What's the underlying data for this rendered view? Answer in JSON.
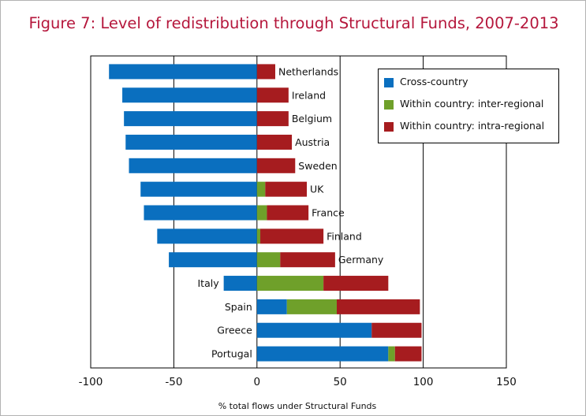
{
  "figure": {
    "title": "Figure 7: Level of redistribution through Structural Funds, 2007-2013"
  },
  "colors": {
    "title": "#b5173c",
    "cross_country": "#0a6fbf",
    "inter_regional": "#6fa02a",
    "intra_regional": "#a61c1f"
  },
  "chart_data": {
    "type": "bar",
    "orientation": "horizontal",
    "stacked": true,
    "categories": [
      "Netherlands",
      "Ireland",
      "Belgium",
      "Austria",
      "Sweden",
      "UK",
      "France",
      "Finland",
      "Germany",
      "Italy",
      "Spain",
      "Greece",
      "Portugal"
    ],
    "series": [
      {
        "name": "Cross-country",
        "values": [
          -89,
          -81,
          -80,
          -79,
          -77,
          -70,
          -68,
          -60,
          -53,
          -20,
          18,
          69,
          79
        ]
      },
      {
        "name": "Within country: inter-regional",
        "values": [
          0,
          0,
          0,
          0,
          0,
          5,
          6,
          2,
          14,
          40,
          30,
          0,
          4
        ]
      },
      {
        "name": "Within country: intra-regional",
        "values": [
          11,
          19,
          19,
          21,
          23,
          25,
          25,
          38,
          33,
          39,
          50,
          30,
          16
        ]
      }
    ],
    "xlabel": "% total flows under Structural Funds",
    "ylabel": "",
    "xlim": [
      -100,
      150
    ],
    "xticks": [
      "-100",
      "-50",
      "0",
      "50",
      "100",
      "150"
    ],
    "grid": "vertical lines at major ticks",
    "legend_position": "top-right"
  }
}
